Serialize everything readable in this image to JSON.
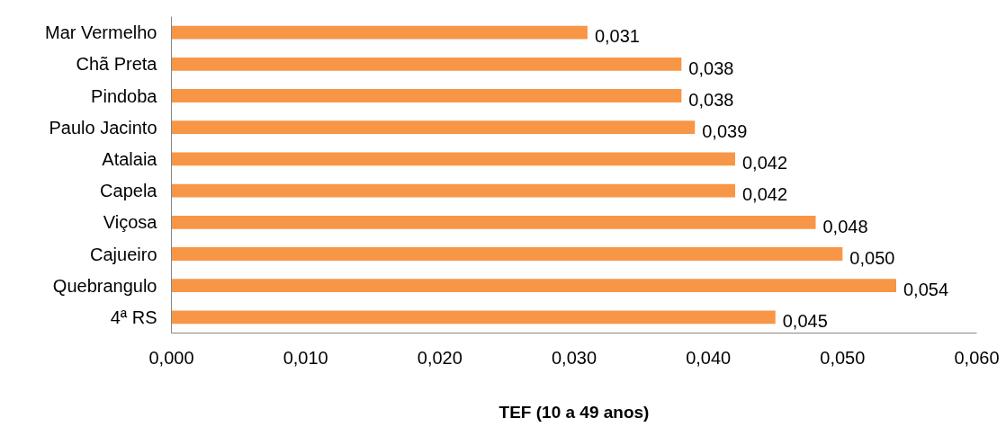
{
  "chart_data": {
    "type": "bar",
    "orientation": "horizontal",
    "xlabel": "TEF (10 a 49 anos)",
    "categories": [
      "Mar Vermelho",
      "Chã Preta",
      "Pindoba",
      "Paulo Jacinto",
      "Atalaia",
      "Capela",
      "Viçosa",
      "Cajueiro",
      "Quebrangulo",
      "4ª RS"
    ],
    "values": [
      0.031,
      0.038,
      0.038,
      0.039,
      0.042,
      0.042,
      0.048,
      0.05,
      0.054,
      0.045
    ],
    "value_labels": [
      "0,031",
      "0,038",
      "0,038",
      "0,039",
      "0,042",
      "0,042",
      "0,048",
      "0,050",
      "0,054",
      "0,045"
    ],
    "color": "#f79646",
    "xlim": [
      0,
      0.06
    ],
    "xticks": [
      {
        "value": 0,
        "label": "0,000"
      },
      {
        "value": 0.01,
        "label": "0,010"
      },
      {
        "value": 0.02,
        "label": "0,020"
      },
      {
        "value": 0.03,
        "label": "0,030"
      },
      {
        "value": 0.04,
        "label": "0,040"
      },
      {
        "value": 0.05,
        "label": "0,050"
      },
      {
        "value": 0.06,
        "label": "0,060"
      }
    ],
    "grid": false
  }
}
